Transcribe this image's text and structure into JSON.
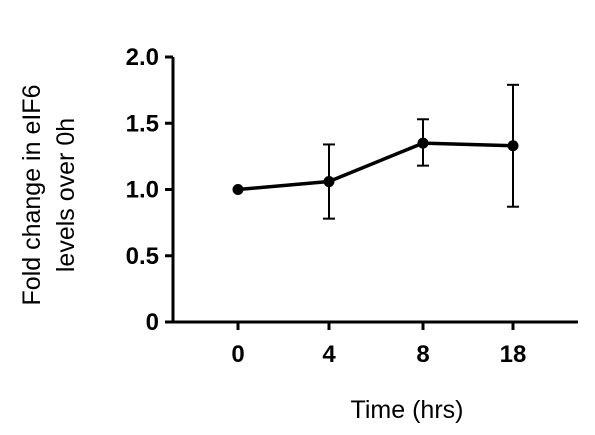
{
  "chart_data": {
    "type": "line",
    "title": "",
    "xlabel": "Time (hrs)",
    "ylabel_lines": [
      "Fold change in eIF6",
      "levels over 0h"
    ],
    "categories": [
      "0",
      "4",
      "8",
      "18"
    ],
    "series": [
      {
        "values": [
          1.0,
          1.06,
          1.35,
          1.33
        ],
        "error_low": [
          1.0,
          0.78,
          1.18,
          0.87
        ],
        "error_high": [
          1.0,
          1.34,
          1.53,
          1.79
        ]
      }
    ],
    "ylim": [
      0,
      2.0
    ],
    "yticks": [
      "0",
      "0.5",
      "1.0",
      "1.5",
      "2.0"
    ],
    "grid": false,
    "color": "#000000"
  }
}
